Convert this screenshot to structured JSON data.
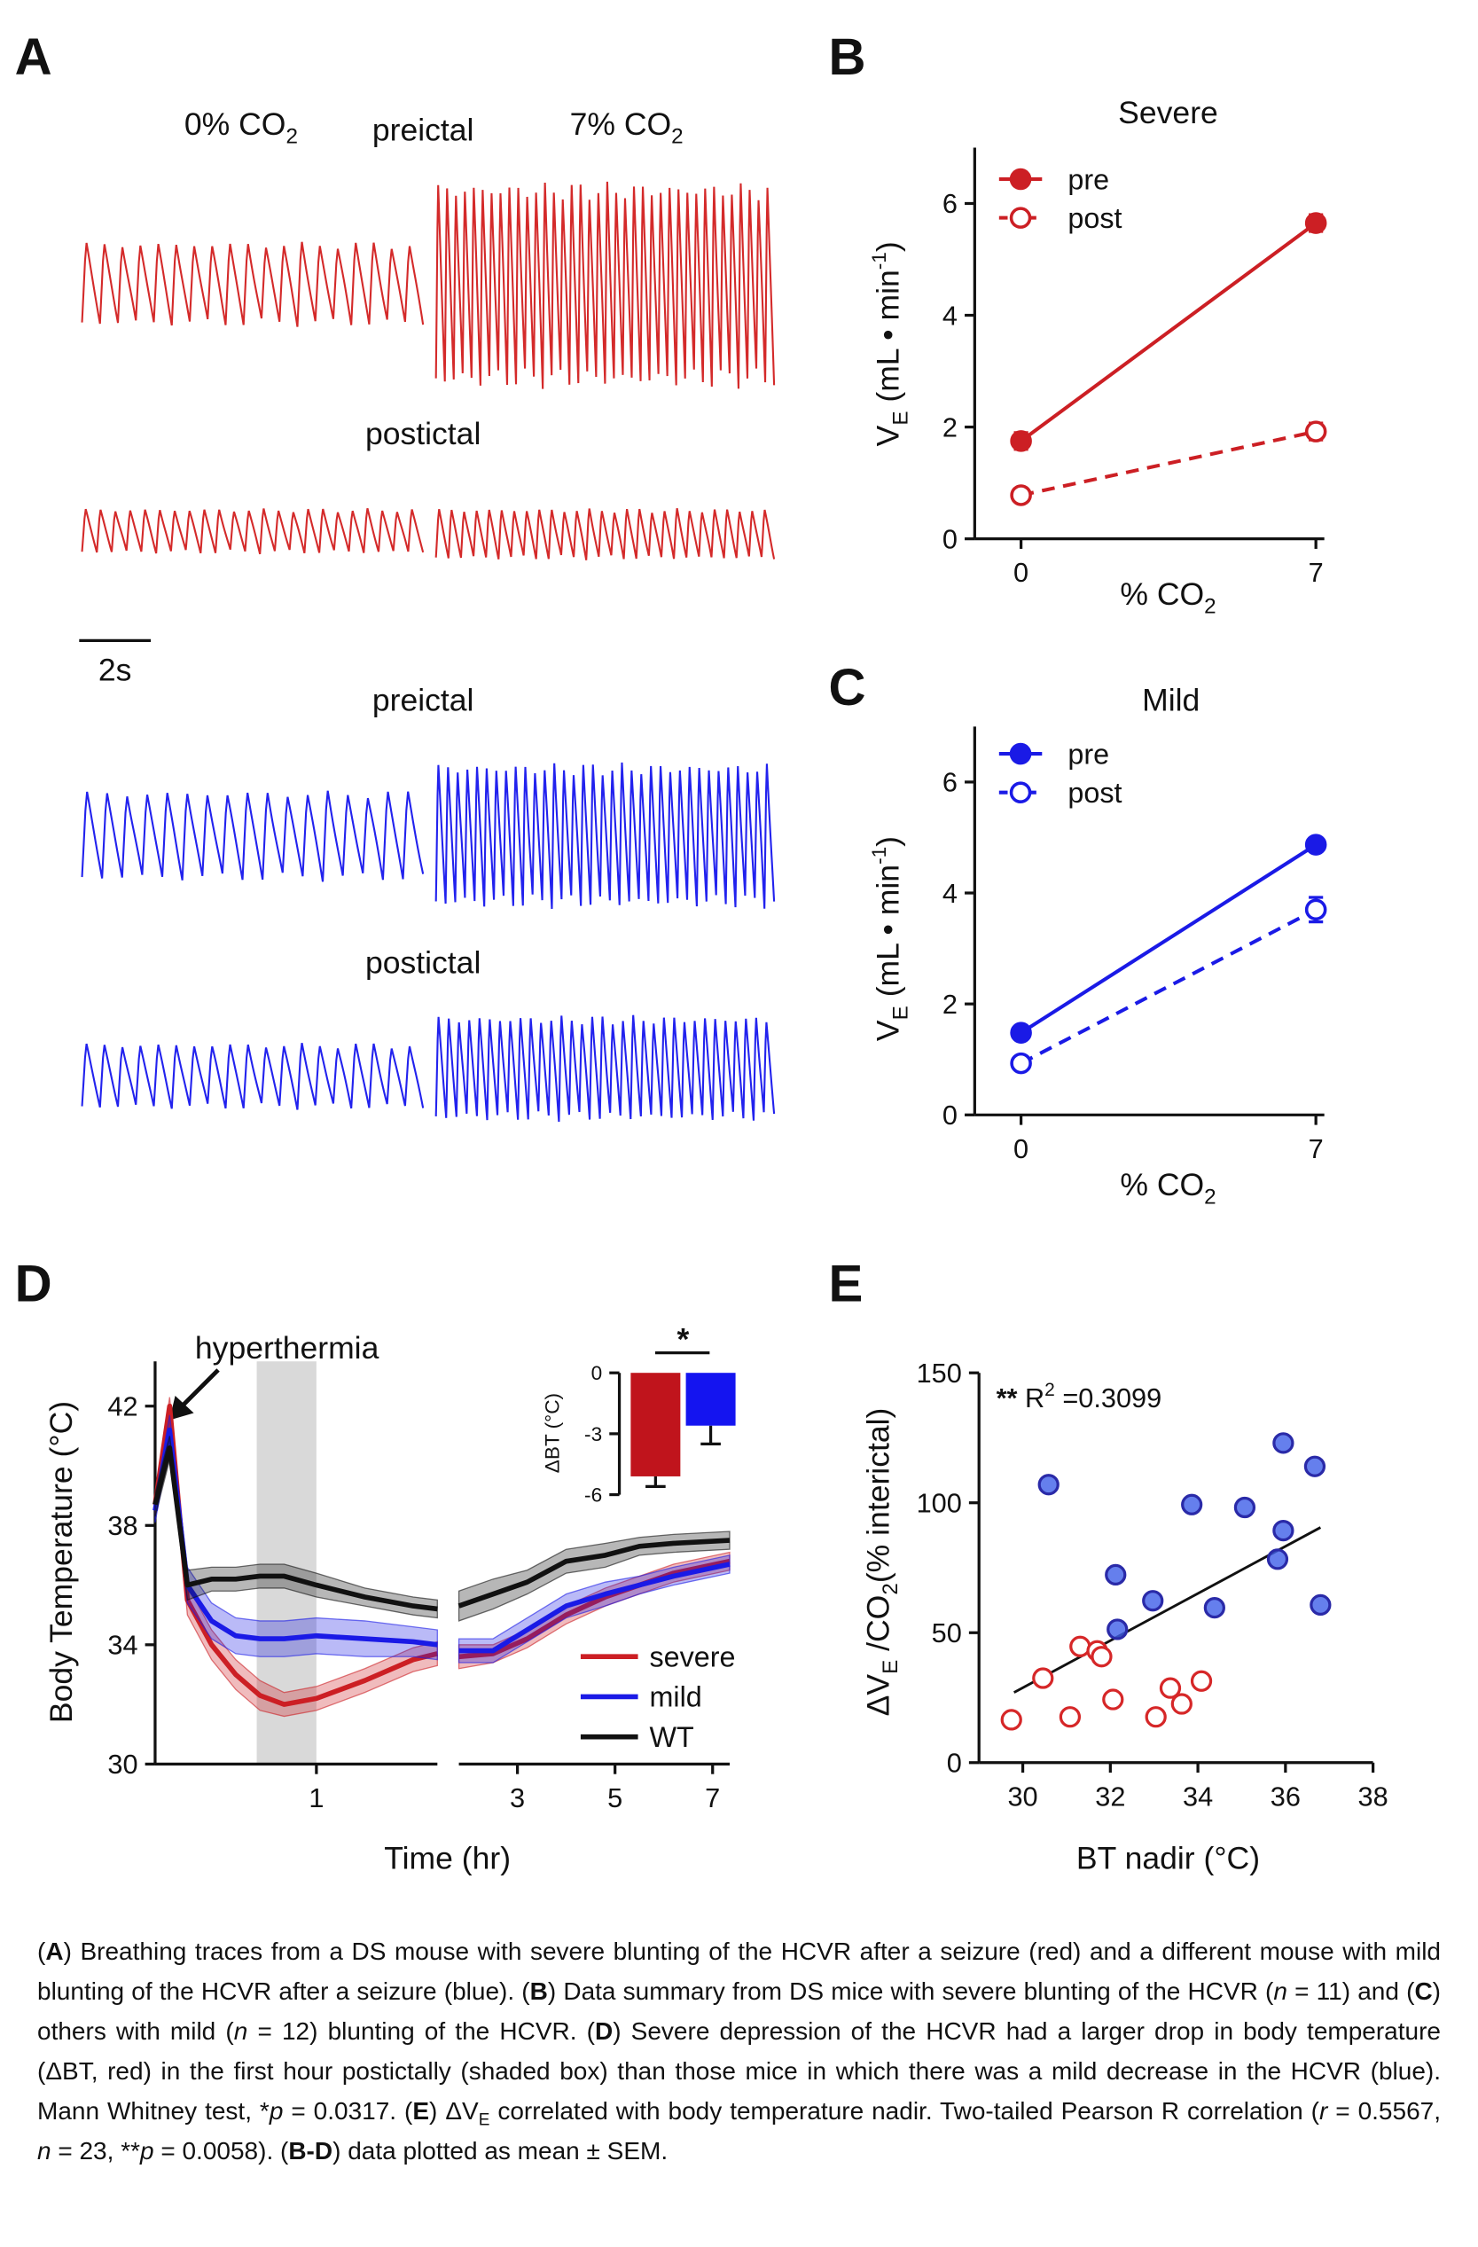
{
  "panel_labels": [
    "A",
    "B",
    "C",
    "D",
    "E"
  ],
  "panel_a": {
    "label_0co2": [
      "0% CO",
      "2"
    ],
    "top_preictal": "preictal",
    "label_7co2": [
      "7% CO",
      "2"
    ],
    "red_postictal": "postictal",
    "scale_bar": "2s",
    "blue_preictal": "preictal",
    "blue_postictal": "postictal"
  },
  "chart_data": [
    {
      "type": "line",
      "title": "Severe",
      "x_label": [
        "% CO",
        "2"
      ],
      "y_label": [
        "V",
        "E",
        " (mL • min",
        "-1",
        ")"
      ],
      "x": [
        0,
        7
      ],
      "xlim": [
        -1.1,
        7.2
      ],
      "xticks": [
        0,
        7
      ],
      "ylim": [
        0,
        7
      ],
      "yticks": [
        0,
        2,
        4,
        6
      ],
      "legend": "upper left",
      "error_style": "bars",
      "series": [
        {
          "name": "pre",
          "color": "#cc1f24",
          "line_style": "solid",
          "marker_fill": true,
          "values": [
            1.75,
            5.65
          ],
          "errors": [
            0.15,
            0.15
          ]
        },
        {
          "name": "post",
          "color": "#cc1f24",
          "line_style": "dashed",
          "marker_fill": false,
          "values": [
            0.78,
            1.92
          ],
          "errors": [
            0.06,
            0.15
          ]
        }
      ]
    },
    {
      "type": "line",
      "title": "Mild",
      "x_label": [
        "% CO",
        "2"
      ],
      "y_label": [
        "V",
        "E",
        " (mL • min",
        "-1",
        ")"
      ],
      "x": [
        0,
        7
      ],
      "xlim": [
        -1.1,
        7.2
      ],
      "xticks": [
        0,
        7
      ],
      "ylim": [
        0,
        7
      ],
      "yticks": [
        0,
        2,
        4,
        6
      ],
      "legend": "upper left",
      "error_style": "bars",
      "series": [
        {
          "name": "pre",
          "color": "#1a1ae6",
          "line_style": "solid",
          "marker_fill": true,
          "values": [
            1.48,
            4.87
          ],
          "errors": [
            0.05,
            0.12
          ]
        },
        {
          "name": "post",
          "color": "#1a1ae6",
          "line_style": "dashed",
          "marker_fill": false,
          "values": [
            0.93,
            3.7
          ],
          "errors": [
            0.05,
            0.22
          ]
        }
      ]
    },
    {
      "type": "line",
      "y_label": "Body Temperature (°C)",
      "x_label": "Time (hr)",
      "annotation": "hyperthermia",
      "x": [
        0,
        0.09,
        0.2,
        0.35,
        0.5,
        0.65,
        0.8,
        1.0,
        1.3,
        1.6,
        1.75,
        1.77,
        1.8,
        2.5,
        3.2,
        4.0,
        4.8,
        5.5,
        6.2,
        7.35
      ],
      "xlims": [
        [
          0,
          1.75
        ],
        [
          1.8,
          7.35
        ]
      ],
      "xticks": [
        1,
        3,
        5,
        7
      ],
      "ylim": [
        30,
        43.5
      ],
      "yticks": [
        30,
        34,
        38,
        42
      ],
      "shaded_region": [
        0.63,
        1.0
      ],
      "legend": "lower right",
      "error_style": "band",
      "series": [
        {
          "name": "severe",
          "color": "#cc1f24",
          "values": [
            38.7,
            42.0,
            35.5,
            34.0,
            33.0,
            32.3,
            32.0,
            32.2,
            32.8,
            33.5,
            33.7,
            null,
            33.6,
            33.7,
            34.2,
            35.0,
            35.6,
            36.0,
            36.4,
            36.8
          ],
          "errors": [
            0.3,
            0.3,
            0.5,
            0.5,
            0.5,
            0.5,
            0.4,
            0.4,
            0.4,
            0.4,
            0.4,
            null,
            0.4,
            0.3,
            0.3,
            0.3,
            0.3,
            0.3,
            0.3,
            0.3
          ]
        },
        {
          "name": "mild",
          "color": "#1a1ae6",
          "values": [
            38.5,
            41.2,
            36.0,
            34.8,
            34.3,
            34.2,
            34.2,
            34.3,
            34.2,
            34.1,
            34.0,
            null,
            33.8,
            33.8,
            34.5,
            35.3,
            35.7,
            36.0,
            36.3,
            36.7
          ],
          "errors": [
            0.4,
            0.5,
            0.6,
            0.6,
            0.6,
            0.6,
            0.6,
            0.6,
            0.6,
            0.5,
            0.5,
            null,
            0.4,
            0.4,
            0.4,
            0.4,
            0.4,
            0.3,
            0.3,
            0.3
          ]
        },
        {
          "name": "WT",
          "color": "#111111",
          "values": [
            38.7,
            40.6,
            36.0,
            36.2,
            36.2,
            36.3,
            36.3,
            36.0,
            35.6,
            35.3,
            35.2,
            null,
            35.3,
            35.7,
            36.1,
            36.8,
            37.0,
            37.3,
            37.4,
            37.5
          ],
          "errors": [
            0.4,
            0.4,
            0.5,
            0.4,
            0.4,
            0.4,
            0.4,
            0.4,
            0.3,
            0.3,
            0.3,
            null,
            0.5,
            0.5,
            0.4,
            0.4,
            0.4,
            0.3,
            0.3,
            0.3
          ]
        }
      ]
    },
    {
      "type": "bar",
      "y_label": "ΔBT (°C)",
      "categories": [
        null,
        null
      ],
      "values": [
        -5.1,
        -2.6
      ],
      "errors": [
        0.5,
        0.9
      ],
      "colors": [
        "#c0141c",
        "#1414f0"
      ],
      "ylim": [
        -6,
        0
      ],
      "yticks": [
        -6,
        -3,
        0
      ],
      "significance": "*"
    },
    {
      "type": "scatter",
      "y_label": [
        "ΔV",
        "E",
        " /CO",
        "2",
        "(% interictal)"
      ],
      "x_label": "BT nadir (°C)",
      "annotation": [
        "**",
        " R",
        "2",
        " =0.3099"
      ],
      "xlim": [
        29,
        38
      ],
      "xticks": [
        30,
        32,
        34,
        36,
        38
      ],
      "ylim": [
        0,
        150
      ],
      "yticks": [
        0,
        50,
        100,
        150
      ],
      "series": [
        {
          "color": "#d62728",
          "marker_fill": false,
          "x": [
            29.74,
            30.46,
            31.08,
            31.31,
            31.7,
            31.8,
            32.06,
            33.04,
            33.37,
            33.63,
            34.08
          ],
          "values": [
            16.5,
            32.5,
            17.6,
            44.7,
            43,
            40.8,
            24.3,
            17.6,
            28.7,
            22.6,
            31.4
          ]
        },
        {
          "color": "#3f5fe8",
          "marker_fill": true,
          "x": [
            30.59,
            32.12,
            32.16,
            32.97,
            33.86,
            34.38,
            35.07,
            35.82,
            35.95,
            35.95,
            36.67,
            36.8
          ],
          "values": [
            107,
            72.3,
            51.3,
            62.3,
            99.3,
            59.6,
            98.2,
            78.3,
            123,
            89.3,
            114,
            60.7
          ]
        }
      ],
      "fit_line": {
        "x": [
          29.8,
          36.8
        ],
        "y": [
          27,
          90.5
        ]
      }
    }
  ],
  "caption": [
    "(",
    "A",
    ") Breathing traces from a DS mouse with severe blunting of the HCVR after a seizure (red) and a different mouse with mild blunting of the HCVR after a seizure (blue). (",
    "B",
    ") Data summary from DS mice with severe blunting of the HCVR (",
    "n",
    " = 11) and (",
    "C",
    ") others with mild (",
    "n",
    " = 12) blunting of the HCVR. (",
    "D",
    ") Severe depression of the HCVR had a larger drop in body temperature (ΔBT, red) in the first hour postictally (shaded box) than those mice in which there was a mild decrease in the HCVR (blue). Mann Whitney test, *",
    "p",
    " = 0.0317. (",
    "E",
    ") ΔV",
    "E",
    " correlated with body temperature nadir. Two-tailed Pearson R correlation (",
    "r",
    " = 0.5567, ",
    "n",
    " = 23, **",
    "p",
    " = 0.0058). (",
    "B-D",
    ") data plotted as mean ± SEM."
  ]
}
